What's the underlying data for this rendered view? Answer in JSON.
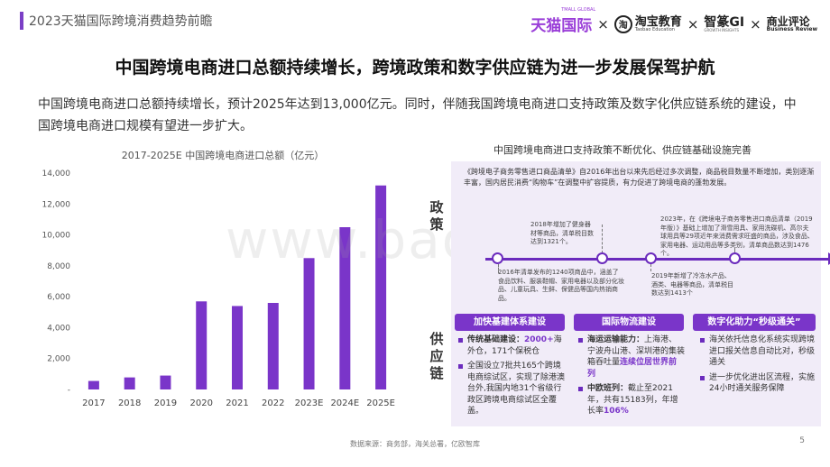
{
  "header": {
    "title": "2023天猫国际跨境消费趋势前瞻",
    "logos": {
      "tmall": "天猫国际",
      "tmall_sub": "TMALL GLOBAL",
      "times": "×",
      "taobao_mark": "淘",
      "taobao": "淘宝教育",
      "taobao_sub": "Taobao Education",
      "zhice": "智篆GI",
      "zhice_sub": "GROWTH INSIGHTS",
      "bizrev": "商业评论",
      "bizrev_sub": "Business Review"
    }
  },
  "headline": "中国跨境电商进口总额持续增长，跨境政策和数字供应链为进一步发展保驾护航",
  "intro": "中国跨境电商进口总额持续增长，预计2025年达到13,000亿元。同时，伴随我国跨境电商进口支持政策及数字化供应链系统的建设，中国跨境电商进口规模有望进一步扩大。",
  "watermark": "www.baogao8.com",
  "chart_data": {
    "type": "bar",
    "title": "2017-2025E 中国跨境电商进口总额（亿元）",
    "categories": [
      "2017",
      "2018",
      "2019",
      "2020",
      "2021",
      "2022",
      "2023E",
      "2024E",
      "2025E"
    ],
    "values": [
      550,
      780,
      900,
      5700,
      5400,
      5600,
      8500,
      10500,
      13200
    ],
    "ylim": [
      0,
      14000
    ],
    "yticks": [
      0,
      2000,
      4000,
      6000,
      8000,
      10000,
      12000,
      14000
    ],
    "ytick_labels": [
      "-",
      "2,000",
      "4,000",
      "6,000",
      "8,000",
      "10,000",
      "12,000",
      "14,000"
    ],
    "bar_color": "#7a35c9",
    "grid": false
  },
  "right": {
    "title": "中国跨境电商进口支持政策不断优化、供应链基础设施完善",
    "policy_label": "政策",
    "supply_label": "供应链",
    "policy_text": "《跨境电子商务零售进口商品清单》自2016年出台以来先后经过多次调整，商品税目数量不断增加，类别逐渐丰富，国内居民消费“购物车”在调整中扩容提质，有力促进了跨境电商的蓬勃发展。",
    "notes": {
      "n2018": "2018年增加了健身器材等商品，清单税目数达到1321个。",
      "n2023": "2023年，在《跨境电子商务零售进口商品清单（2019年版）》基础上增加了滑雪用具、家用洗碟机、高尔夫球用具等29项近年来消费需求旺盛的商品，涉及食品、家用电器、运动用品等多类别，清单商品数达到1476个。",
      "n2016": "2016年清单发布的1240项商品中，涵盖了食品饮料、服装鞋帽、家用电器以及部分化妆品、儿童玩具、生鲜、保健品等国内热销商品。",
      "n2019": "2019年新增了冷冻水产品、酒类、电器等商品，清单税目数达到1413个"
    },
    "pills": [
      "加快基建体系建设",
      "国际物流建设",
      "数字化助力“秒级通关”"
    ],
    "col1": {
      "i1_bold": "传统基础建设：",
      "i1_purple": "2000+",
      "i1_rest": "海外仓，171个保税仓",
      "i2": "全国设立7批共165个跨境电商综试区，实现了除港澳台外,我国内地31个省级行政区跨境电商综试区全覆盖。"
    },
    "col2": {
      "i1_bold": "海运运输能力：",
      "i1_text": "上海港、宁波舟山港、深圳港的集装箱吞吐量",
      "i1_purple": "连续位居世界前列",
      "i2_bold": "中欧班列：",
      "i2_text": "截止至2021年，共有15183列，年增长率",
      "i2_purple": "106%"
    },
    "col3": {
      "i1": "海关依托信息化系统实现跨境进口报关信息自动比对，秒级通关",
      "i2": "进一步优化进出区流程，实施24小时通关服务保障"
    }
  },
  "footer": {
    "source": "数据来源：商务部，海关总署，亿欧智库",
    "page": "5"
  }
}
